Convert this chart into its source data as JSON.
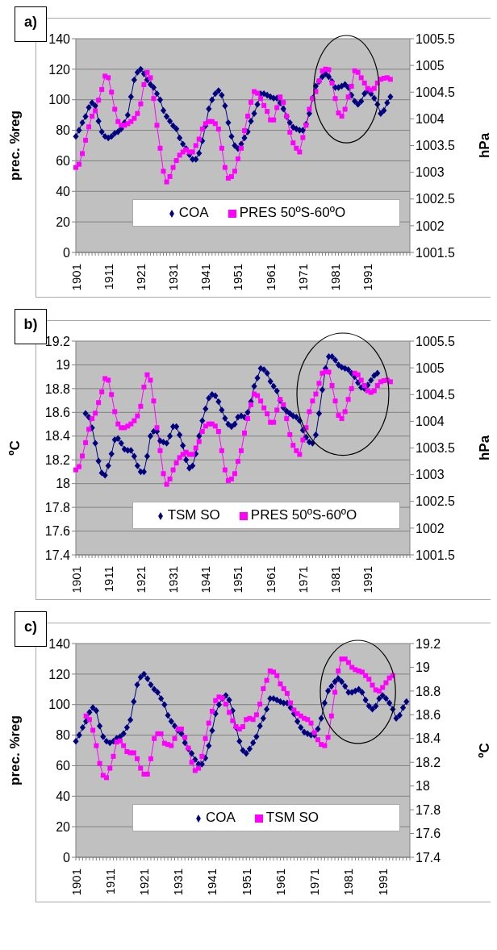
{
  "chart_data": [
    {
      "type": "line",
      "title": "a)",
      "ylabel": "prec. %reg",
      "y2label": "hPa",
      "ylim": [
        0,
        140
      ],
      "yticks": [
        0,
        20,
        40,
        60,
        80,
        100,
        120,
        140
      ],
      "y2lim": [
        1001.5,
        1005.5
      ],
      "y2ticks": [
        1001.5,
        1002,
        1002.5,
        1003,
        1003.5,
        1004,
        1004.5,
        1005,
        1005.5
      ],
      "grid": "y",
      "legend": "bottom",
      "categories": [
        "1901",
        null,
        null,
        null,
        null,
        null,
        null,
        null,
        null,
        null,
        "1911",
        null,
        null,
        null,
        null,
        null,
        null,
        null,
        null,
        null,
        "1921",
        null,
        null,
        null,
        null,
        null,
        null,
        null,
        null,
        null,
        "1931",
        null,
        null,
        null,
        null,
        null,
        null,
        null,
        null,
        null,
        "1941",
        null,
        null,
        null,
        null,
        null,
        null,
        null,
        null,
        null,
        "1951",
        null,
        null,
        null,
        null,
        null,
        null,
        null,
        null,
        null,
        "1961",
        null,
        null,
        null,
        null,
        null,
        null,
        null,
        null,
        null,
        "1971",
        null,
        null,
        null,
        null,
        null,
        null,
        null,
        null,
        null,
        "1981",
        null,
        null,
        null,
        null,
        null,
        null,
        null,
        null,
        null,
        "1991",
        null,
        null,
        null,
        null,
        null,
        null,
        null,
        null,
        null,
        null,
        null,
        null,
        null
      ],
      "series": [
        {
          "name": "COA",
          "color": "#000080",
          "marker": "diamond",
          "values": [
            76,
            80,
            85,
            89,
            95,
            98,
            96,
            86,
            79,
            76,
            75,
            76,
            78,
            79,
            81,
            85,
            90,
            102,
            113,
            118,
            120,
            117,
            113,
            110,
            108,
            104,
            100,
            93,
            89,
            86,
            83,
            81,
            75,
            71,
            68,
            64,
            61,
            61,
            65,
            73,
            83,
            94,
            100,
            104,
            106,
            103,
            96,
            85,
            76,
            70,
            68,
            71,
            75,
            79,
            86,
            91,
            97,
            104,
            104,
            103,
            102,
            101,
            101,
            98,
            94,
            89,
            85,
            82,
            81,
            80,
            80,
            84,
            91,
            101,
            109,
            112,
            115,
            117,
            115,
            112,
            108,
            108,
            109,
            110,
            108,
            103,
            99,
            97,
            99,
            104,
            106,
            104,
            101,
            97,
            91,
            93,
            98,
            102,
            null,
            null,
            null,
            null,
            null,
            null
          ]
        },
        {
          "name": "PRES 50ºS-60ºO",
          "color": "#ff00ff",
          "marker": "square",
          "axis": "y2",
          "values": [
            1003.09,
            1003.15,
            1003.35,
            1003.6,
            1003.85,
            1004.05,
            1004.15,
            1004.35,
            1004.55,
            1004.8,
            1004.77,
            1004.5,
            1004.18,
            1003.95,
            1003.88,
            1003.88,
            1003.91,
            1003.95,
            1004.01,
            1004.1,
            1004.28,
            1004.64,
            1004.87,
            1004.77,
            1004.38,
            1003.88,
            1003.45,
            1003.02,
            1002.82,
            1002.92,
            1003.09,
            1003.22,
            1003.32,
            1003.38,
            1003.42,
            1003.38,
            1003.38,
            1003.5,
            1003.62,
            1003.81,
            1003.91,
            1003.95,
            1003.95,
            1003.91,
            1003.81,
            1003.45,
            1003.09,
            1002.89,
            1002.92,
            1003.02,
            1003.25,
            1003.45,
            1003.78,
            1004.05,
            1004.31,
            1004.51,
            1004.48,
            1004.38,
            1004.25,
            1004.14,
            1003.98,
            1003.98,
            1004.21,
            1004.41,
            1004.31,
            1004.05,
            1003.75,
            1003.55,
            1003.45,
            1003.38,
            1003.65,
            1003.88,
            1004.18,
            1004.38,
            1004.51,
            1004.71,
            1004.9,
            1004.93,
            1004.92,
            1004.67,
            1004.38,
            1004.11,
            1004.05,
            1004.18,
            1004.41,
            1004.61,
            1004.9,
            1004.87,
            1004.77,
            1004.67,
            1004.57,
            1004.54,
            1004.57,
            1004.67,
            1004.74,
            1004.76,
            1004.77,
            1004.74,
            null,
            null,
            null,
            null,
            null,
            null
          ]
        }
      ]
    },
    {
      "type": "line",
      "title": "b)",
      "ylabel": "ºC",
      "y2label": "hPa",
      "ylim": [
        17.4,
        19.2
      ],
      "yticks": [
        17.4,
        17.6,
        17.8,
        18,
        18.2,
        18.4,
        18.6,
        18.8,
        19,
        19.2
      ],
      "y2lim": [
        1001.5,
        1005.5
      ],
      "y2ticks": [
        1001.5,
        1002,
        1002.5,
        1003,
        1003.5,
        1004,
        1004.5,
        1005,
        1005.5
      ],
      "grid": "y",
      "legend": "bottom",
      "categories": [
        "1901",
        null,
        null,
        null,
        null,
        null,
        null,
        null,
        null,
        null,
        "1911",
        null,
        null,
        null,
        null,
        null,
        null,
        null,
        null,
        null,
        "1921",
        null,
        null,
        null,
        null,
        null,
        null,
        null,
        null,
        null,
        "1931",
        null,
        null,
        null,
        null,
        null,
        null,
        null,
        null,
        null,
        "1941",
        null,
        null,
        null,
        null,
        null,
        null,
        null,
        null,
        null,
        "1951",
        null,
        null,
        null,
        null,
        null,
        null,
        null,
        null,
        null,
        "1961",
        null,
        null,
        null,
        null,
        null,
        null,
        null,
        null,
        null,
        "1971",
        null,
        null,
        null,
        null,
        null,
        null,
        null,
        null,
        null,
        "1981",
        null,
        null,
        null,
        null,
        null,
        null,
        null,
        null,
        null,
        "1991",
        null,
        null,
        null,
        null,
        null,
        null,
        null,
        null,
        null,
        null,
        null,
        null,
        null
      ],
      "series": [
        {
          "name": "TSM SO",
          "color": "#000080",
          "marker": "diamond",
          "values": [
            null,
            null,
            null,
            18.59,
            18.56,
            18.47,
            18.34,
            18.19,
            18.09,
            18.07,
            18.15,
            18.25,
            18.37,
            18.38,
            18.34,
            18.29,
            18.28,
            18.28,
            18.23,
            18.15,
            18.1,
            18.1,
            18.23,
            18.4,
            18.44,
            18.44,
            18.36,
            18.35,
            18.34,
            18.4,
            18.48,
            18.48,
            18.41,
            18.32,
            18.2,
            18.13,
            18.15,
            18.25,
            18.4,
            18.53,
            18.63,
            18.72,
            18.75,
            18.74,
            18.69,
            18.62,
            18.55,
            18.5,
            18.48,
            18.5,
            18.56,
            18.57,
            18.56,
            18.6,
            18.69,
            18.82,
            18.89,
            18.97,
            18.96,
            18.93,
            18.86,
            18.82,
            18.78,
            18.7,
            18.64,
            18.61,
            18.59,
            18.57,
            18.56,
            18.53,
            18.45,
            18.39,
            18.35,
            18.34,
            18.41,
            18.59,
            18.79,
            18.97,
            19.07,
            19.07,
            19.04,
            19.0,
            18.98,
            18.97,
            18.96,
            18.93,
            18.9,
            18.85,
            18.81,
            18.8,
            18.83,
            18.87,
            18.91,
            18.93,
            null,
            null,
            null,
            null,
            null,
            null,
            null,
            null,
            null,
            null
          ]
        },
        {
          "name": "PRES 50ºS-60ºO",
          "color": "#ff00ff",
          "marker": "square",
          "axis": "y2",
          "values": [
            1003.09,
            1003.15,
            1003.35,
            1003.6,
            1003.85,
            1004.05,
            1004.15,
            1004.35,
            1004.55,
            1004.8,
            1004.77,
            1004.5,
            1004.18,
            1003.95,
            1003.88,
            1003.88,
            1003.91,
            1003.95,
            1004.01,
            1004.1,
            1004.28,
            1004.64,
            1004.87,
            1004.77,
            1004.38,
            1003.88,
            1003.45,
            1003.02,
            1002.82,
            1002.92,
            1003.09,
            1003.22,
            1003.32,
            1003.38,
            1003.42,
            1003.38,
            1003.38,
            1003.5,
            1003.62,
            1003.81,
            1003.91,
            1003.95,
            1003.95,
            1003.91,
            1003.81,
            1003.45,
            1003.09,
            1002.89,
            1002.92,
            1003.02,
            1003.25,
            1003.45,
            1003.78,
            1004.05,
            1004.31,
            1004.51,
            1004.48,
            1004.38,
            1004.25,
            1004.14,
            1003.98,
            1003.98,
            1004.21,
            1004.41,
            1004.31,
            1004.05,
            1003.75,
            1003.55,
            1003.45,
            1003.38,
            1003.65,
            1003.88,
            1004.18,
            1004.38,
            1004.51,
            1004.71,
            1004.9,
            1004.93,
            1004.92,
            1004.67,
            1004.38,
            1004.11,
            1004.05,
            1004.18,
            1004.41,
            1004.61,
            1004.9,
            1004.87,
            1004.77,
            1004.67,
            1004.57,
            1004.54,
            1004.57,
            1004.67,
            1004.74,
            1004.76,
            1004.77,
            1004.74,
            null,
            null,
            null,
            null,
            null,
            null
          ]
        }
      ]
    },
    {
      "type": "line",
      "title": "c)",
      "ylabel": "prec. %reg",
      "y2label": "ºC",
      "ylim": [
        0,
        140
      ],
      "yticks": [
        0,
        20,
        40,
        60,
        80,
        100,
        120,
        140
      ],
      "y2lim": [
        17.4,
        19.2
      ],
      "y2ticks": [
        17.4,
        17.6,
        17.8,
        18,
        18.2,
        18.4,
        18.6,
        18.8,
        19,
        19.2
      ],
      "grid": "y",
      "legend": "bottom",
      "categories": [
        "1901",
        null,
        null,
        null,
        null,
        null,
        null,
        null,
        null,
        null,
        "1911",
        null,
        null,
        null,
        null,
        null,
        null,
        null,
        null,
        null,
        "1921",
        null,
        null,
        null,
        null,
        null,
        null,
        null,
        null,
        null,
        "1931",
        null,
        null,
        null,
        null,
        null,
        null,
        null,
        null,
        null,
        "1941",
        null,
        null,
        null,
        null,
        null,
        null,
        null,
        null,
        null,
        "1951",
        null,
        null,
        null,
        null,
        null,
        null,
        null,
        null,
        null,
        "1961",
        null,
        null,
        null,
        null,
        null,
        null,
        null,
        null,
        null,
        "1971",
        null,
        null,
        null,
        null,
        null,
        null,
        null,
        null,
        null,
        "1981",
        null,
        null,
        null,
        null,
        null,
        null,
        null,
        null,
        null,
        "1991",
        null,
        null,
        null,
        null,
        null,
        null,
        null,
        null
      ],
      "series": [
        {
          "name": "COA",
          "color": "#000080",
          "marker": "diamond",
          "values": [
            76,
            80,
            85,
            89,
            95,
            98,
            96,
            86,
            79,
            76,
            75,
            76,
            78,
            79,
            81,
            85,
            90,
            102,
            113,
            118,
            120,
            117,
            113,
            110,
            108,
            104,
            100,
            93,
            89,
            86,
            83,
            81,
            75,
            71,
            68,
            64,
            61,
            61,
            65,
            73,
            83,
            94,
            100,
            104,
            106,
            103,
            96,
            85,
            76,
            70,
            68,
            71,
            75,
            79,
            86,
            91,
            97,
            104,
            104,
            103,
            102,
            101,
            101,
            98,
            94,
            89,
            85,
            82,
            81,
            80,
            80,
            84,
            91,
            101,
            109,
            112,
            115,
            117,
            115,
            112,
            108,
            108,
            109,
            110,
            108,
            103,
            99,
            97,
            99,
            104,
            106,
            104,
            101,
            97,
            91,
            93,
            98,
            102,
            null
          ]
        },
        {
          "name": "TSM SO",
          "color": "#ff00ff",
          "marker": "square",
          "axis": "y2",
          "values": [
            null,
            null,
            null,
            18.59,
            18.56,
            18.47,
            18.34,
            18.19,
            18.09,
            18.07,
            18.15,
            18.25,
            18.37,
            18.38,
            18.34,
            18.29,
            18.28,
            18.28,
            18.23,
            18.15,
            18.1,
            18.1,
            18.23,
            18.4,
            18.44,
            18.44,
            18.36,
            18.35,
            18.34,
            18.4,
            18.48,
            18.48,
            18.41,
            18.32,
            18.2,
            18.13,
            18.15,
            18.25,
            18.4,
            18.53,
            18.63,
            18.72,
            18.75,
            18.74,
            18.69,
            18.62,
            18.55,
            18.5,
            18.48,
            18.5,
            18.56,
            18.57,
            18.56,
            18.6,
            18.69,
            18.82,
            18.89,
            18.97,
            18.96,
            18.93,
            18.86,
            18.82,
            18.78,
            18.7,
            18.64,
            18.61,
            18.59,
            18.57,
            18.56,
            18.53,
            18.45,
            18.39,
            18.35,
            18.34,
            18.41,
            18.59,
            18.79,
            18.97,
            19.07,
            19.07,
            19.04,
            19.0,
            18.98,
            18.97,
            18.96,
            18.93,
            18.9,
            18.85,
            18.81,
            18.8,
            18.83,
            18.87,
            18.91,
            18.93,
            null,
            null,
            null,
            null,
            null
          ]
        }
      ]
    }
  ]
}
